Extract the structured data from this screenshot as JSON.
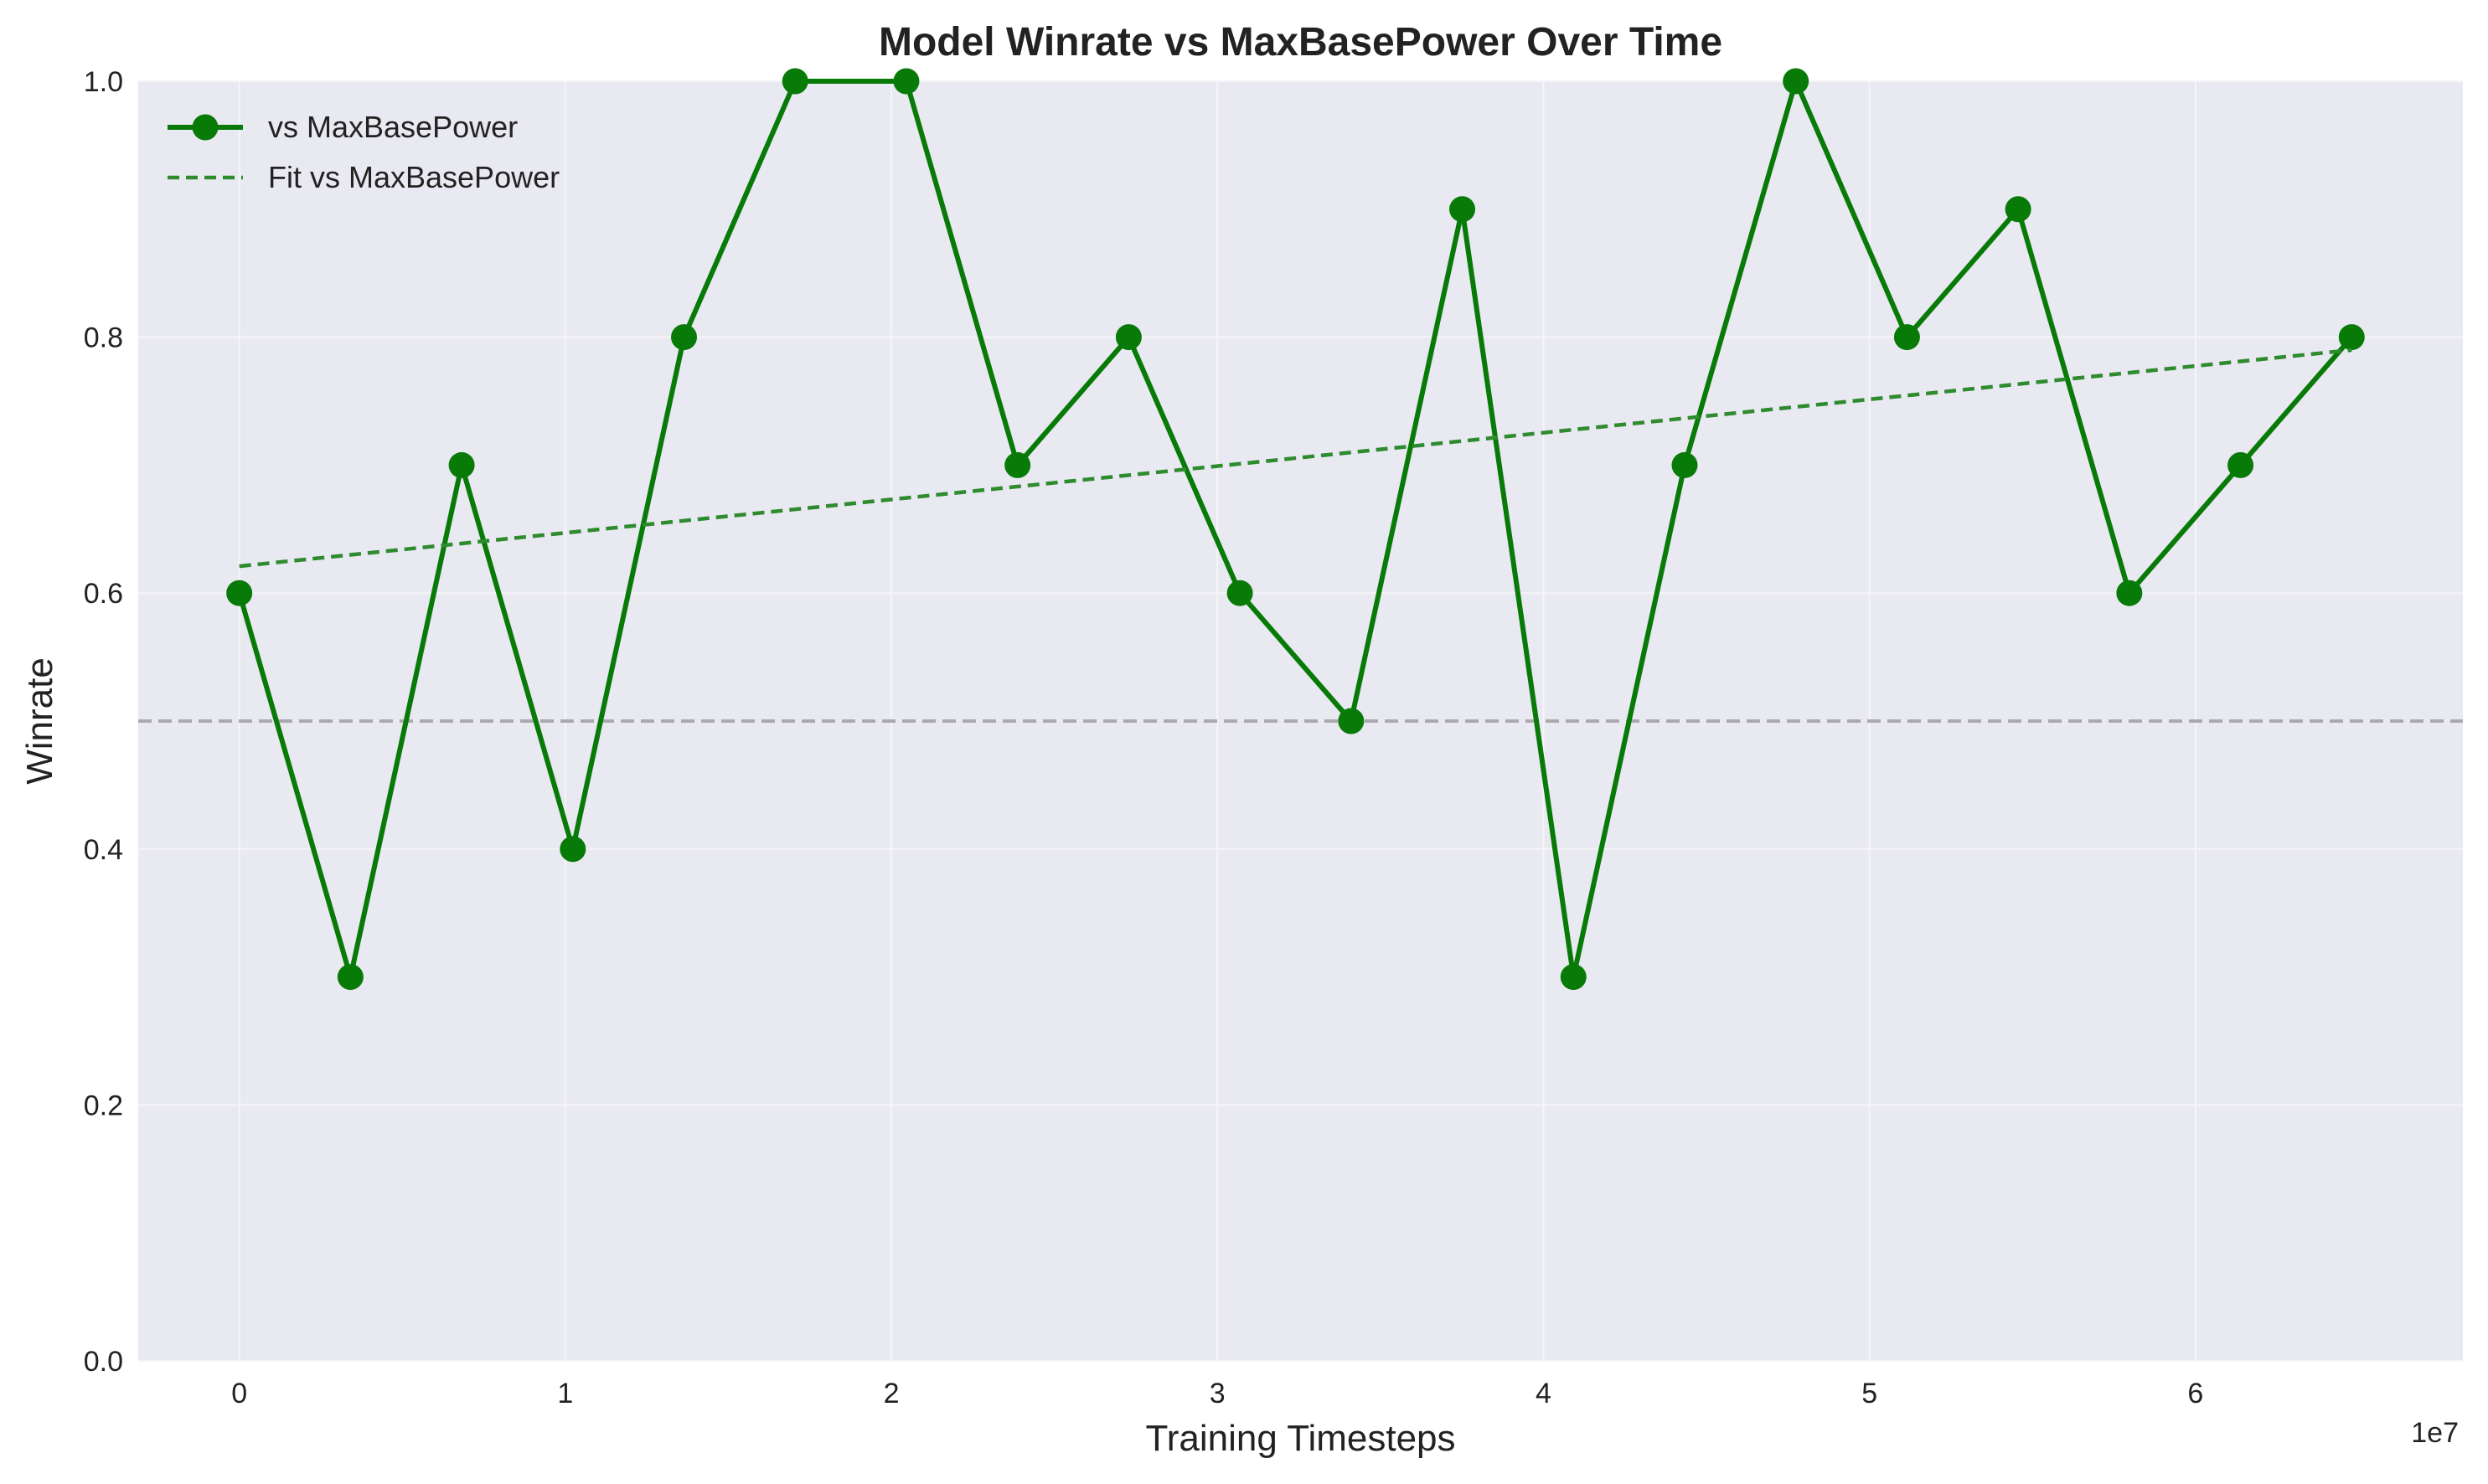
{
  "chart_data": {
    "type": "line",
    "title": "Model Winrate vs MaxBasePower Over Time",
    "xlabel": "Training Timesteps",
    "ylabel": "Winrate",
    "x_offset_label": "1e7",
    "x_scale_factor": 10000000,
    "xlim": [
      -3.1,
      68.2
    ],
    "ylim": [
      0.0,
      1.0
    ],
    "xticks": [
      0,
      1,
      2,
      3,
      4,
      5,
      6
    ],
    "xtick_labels": [
      "0",
      "1",
      "2",
      "3",
      "4",
      "5",
      "6"
    ],
    "yticks": [
      0.0,
      0.2,
      0.4,
      0.6,
      0.8,
      1.0
    ],
    "ytick_labels": [
      "0.0",
      "0.2",
      "0.4",
      "0.6",
      "0.8",
      "1.0"
    ],
    "grid": true,
    "legend_position": "top-left",
    "background_color": "#e9e9f1",
    "series": [
      {
        "name": "vs MaxBasePower",
        "style": "line-markers",
        "color": "#087a08",
        "x": [
          0.0,
          0.341,
          0.682,
          1.023,
          1.364,
          1.705,
          2.046,
          2.387,
          2.728,
          3.069,
          3.41,
          3.751,
          4.092,
          4.433,
          4.774,
          5.115,
          5.456,
          5.797,
          6.138,
          6.479
        ],
        "y": [
          0.6,
          0.3,
          0.7,
          0.4,
          0.8,
          1.0,
          1.0,
          0.7,
          0.8,
          0.6,
          0.5,
          0.9,
          0.3,
          0.7,
          1.0,
          0.8,
          0.9,
          0.6,
          0.7,
          0.8
        ]
      },
      {
        "name": "Fit vs MaxBasePower",
        "style": "dashed",
        "color": "#2e8b2e",
        "x": [
          0.0,
          6.479
        ],
        "y": [
          0.621,
          0.79
        ]
      }
    ],
    "reference_lines": [
      {
        "axis": "y",
        "value": 0.5,
        "style": "dashed",
        "color": "#a9a9ae"
      }
    ]
  }
}
